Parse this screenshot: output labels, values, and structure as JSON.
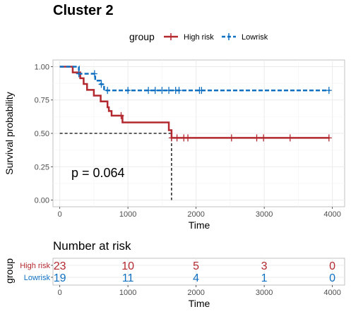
{
  "title": "Cluster 2",
  "legend": {
    "title": "group",
    "items": [
      {
        "label": "High risk",
        "color": "#B2282E",
        "dash": "solid"
      },
      {
        "label": "Lowrisk",
        "color": "#0F6FC0",
        "dash": "dashed"
      }
    ]
  },
  "chart_data": {
    "type": "line",
    "subtype": "kaplan-meier",
    "xlabel": "Time",
    "ylabel": "Survival probability",
    "xlim": [
      -100,
      4180
    ],
    "ylim": [
      -0.05,
      1.05
    ],
    "x_ticks": [
      0,
      1000,
      2000,
      3000,
      4000
    ],
    "y_ticks": [
      0.0,
      0.25,
      0.5,
      0.75,
      1.0
    ],
    "y_tick_labels": [
      "0.00",
      "0.25",
      "0.50",
      "0.75",
      "1.00"
    ],
    "grid": true,
    "p_value_label": "p = 0.064",
    "median_survival_time": 1640,
    "series": [
      {
        "name": "High risk",
        "color": "#B2282E",
        "dash": "solid",
        "steps": [
          [
            0,
            1.0
          ],
          [
            190,
            0.957
          ],
          [
            300,
            0.913
          ],
          [
            350,
            0.87
          ],
          [
            400,
            0.826
          ],
          [
            500,
            0.783
          ],
          [
            600,
            0.739
          ],
          [
            700,
            0.696
          ],
          [
            720,
            0.667
          ],
          [
            760,
            0.633
          ],
          [
            920,
            0.582
          ],
          [
            1600,
            0.524
          ],
          [
            1640,
            0.466
          ],
          [
            3960,
            0.466
          ]
        ],
        "censor_times": [
          900,
          1640,
          1720,
          1820,
          1880,
          2520,
          2890,
          2990,
          3380,
          3950
        ]
      },
      {
        "name": "Lowrisk",
        "color": "#0F6FC0",
        "dash": "dashed",
        "steps": [
          [
            0,
            1.0
          ],
          [
            280,
            0.947
          ],
          [
            520,
            0.895
          ],
          [
            600,
            0.868
          ],
          [
            650,
            0.822
          ],
          [
            3960,
            0.822
          ]
        ],
        "censor_times": [
          280,
          510,
          610,
          700,
          1000,
          1300,
          1400,
          1500,
          1600,
          1700,
          1750,
          2050,
          2080,
          3950
        ]
      }
    ],
    "risk_table": {
      "title": "Number at risk",
      "xlabel": "Time",
      "ylabel": "group",
      "strata_labels": [
        "High risk",
        "Lowrisk"
      ],
      "times": [
        0,
        1000,
        2000,
        3000,
        4000
      ],
      "rows": [
        {
          "name": "High risk",
          "color": "#B2282E",
          "counts": [
            23,
            10,
            5,
            3,
            0
          ]
        },
        {
          "name": "Lowrisk",
          "color": "#0F6FC0",
          "counts": [
            19,
            11,
            4,
            1,
            0
          ]
        }
      ]
    }
  }
}
